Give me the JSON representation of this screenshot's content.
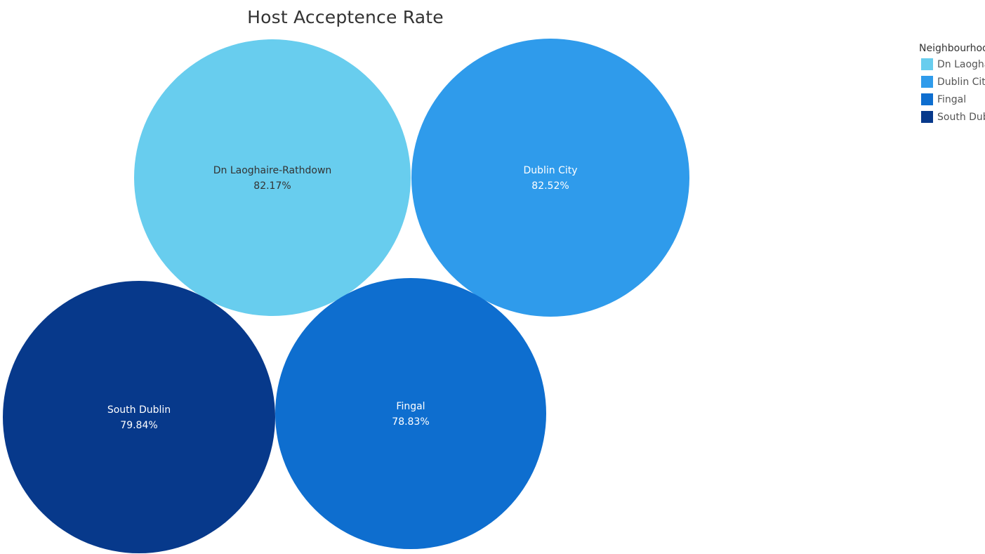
{
  "chart_data": {
    "type": "bubble",
    "title": "Host Acceptence Rate",
    "legend": {
      "title": "Neighbourhood",
      "placement": "right"
    },
    "series": [
      {
        "name": "Dn Laoghaire-Rathdown",
        "value": 82.17,
        "value_label": "82.17%",
        "color": "#68CDEE",
        "label_color": "#333333"
      },
      {
        "name": "Dublin City",
        "value": 82.52,
        "value_label": "82.52%",
        "color": "#2F9BEB",
        "label_color": "#FFFFFF"
      },
      {
        "name": "Fingal",
        "value": 78.83,
        "value_label": "78.83%",
        "color": "#0E6ECF",
        "label_color": "#FFFFFF"
      },
      {
        "name": "South Dublin",
        "value": 79.84,
        "value_label": "79.84%",
        "color": "#07398B",
        "label_color": "#FFFFFF"
      }
    ]
  }
}
